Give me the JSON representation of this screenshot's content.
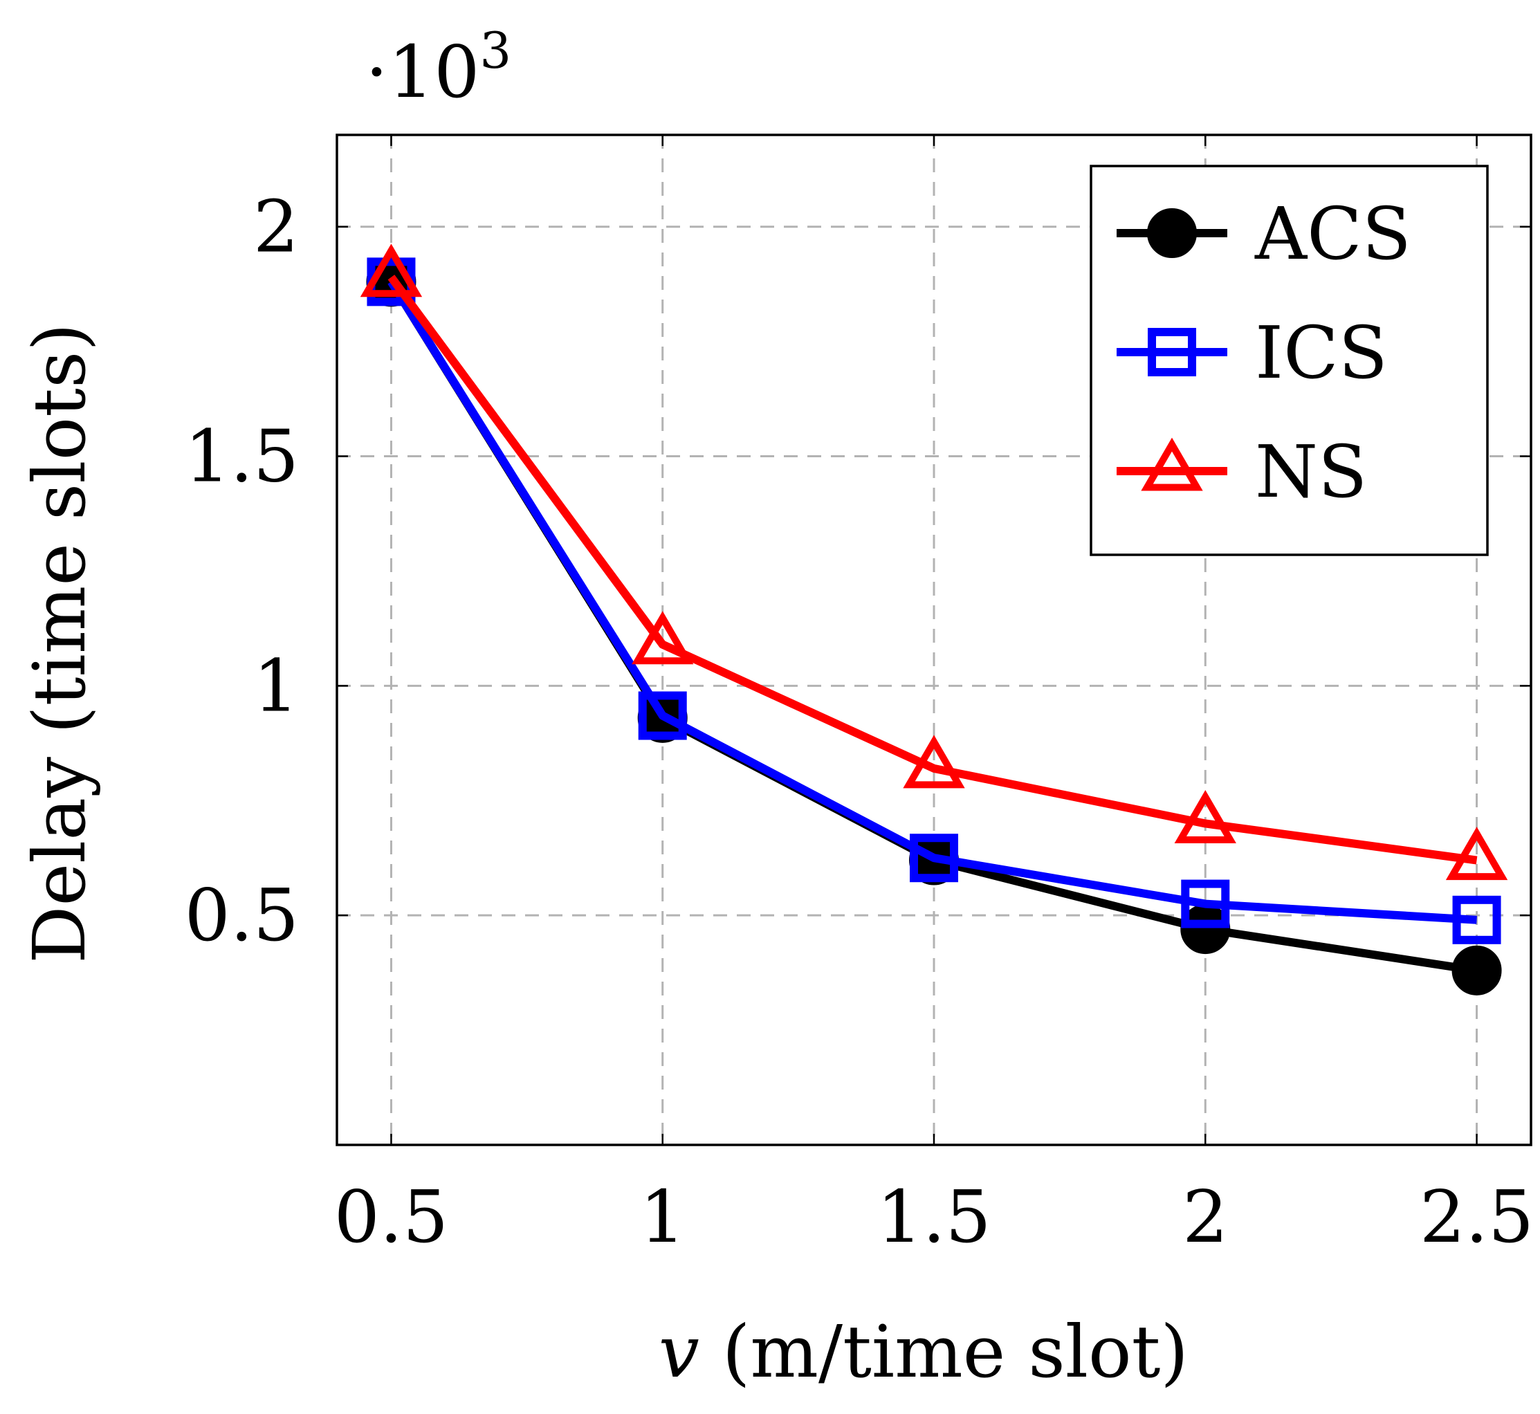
{
  "chart_data": {
    "type": "line",
    "x": [
      0.5,
      1,
      1.5,
      2,
      2.5
    ],
    "series": [
      {
        "name": "ACS",
        "color": "#000000",
        "marker": "filled-circle",
        "values": [
          1880,
          930,
          620,
          470,
          380
        ]
      },
      {
        "name": "ICS",
        "color": "#0000ff",
        "marker": "open-square",
        "values": [
          1880,
          935,
          625,
          525,
          490
        ]
      },
      {
        "name": "NS",
        "color": "#ff0000",
        "marker": "open-triangle",
        "values": [
          1890,
          1090,
          820,
          700,
          620
        ]
      }
    ],
    "xlabel": {
      "var": "v",
      "rest": " (m/time slot)"
    },
    "ylabel": "Delay (time slots)",
    "y_multiplier": {
      "prefix": "·10",
      "exponent": "3"
    },
    "xticks": [
      0.5,
      1,
      1.5,
      2,
      2.5
    ],
    "xtick_labels": [
      "0.5",
      "1",
      "1.5",
      "2",
      "2.5"
    ],
    "yticks": [
      500,
      1000,
      1500,
      2000
    ],
    "ytick_labels": [
      "0.5",
      "1",
      "1.5",
      "2"
    ],
    "xlim": [
      0.4,
      2.6
    ],
    "ylim": [
      0,
      2200
    ],
    "grid": true,
    "legend_position": "top-right"
  }
}
